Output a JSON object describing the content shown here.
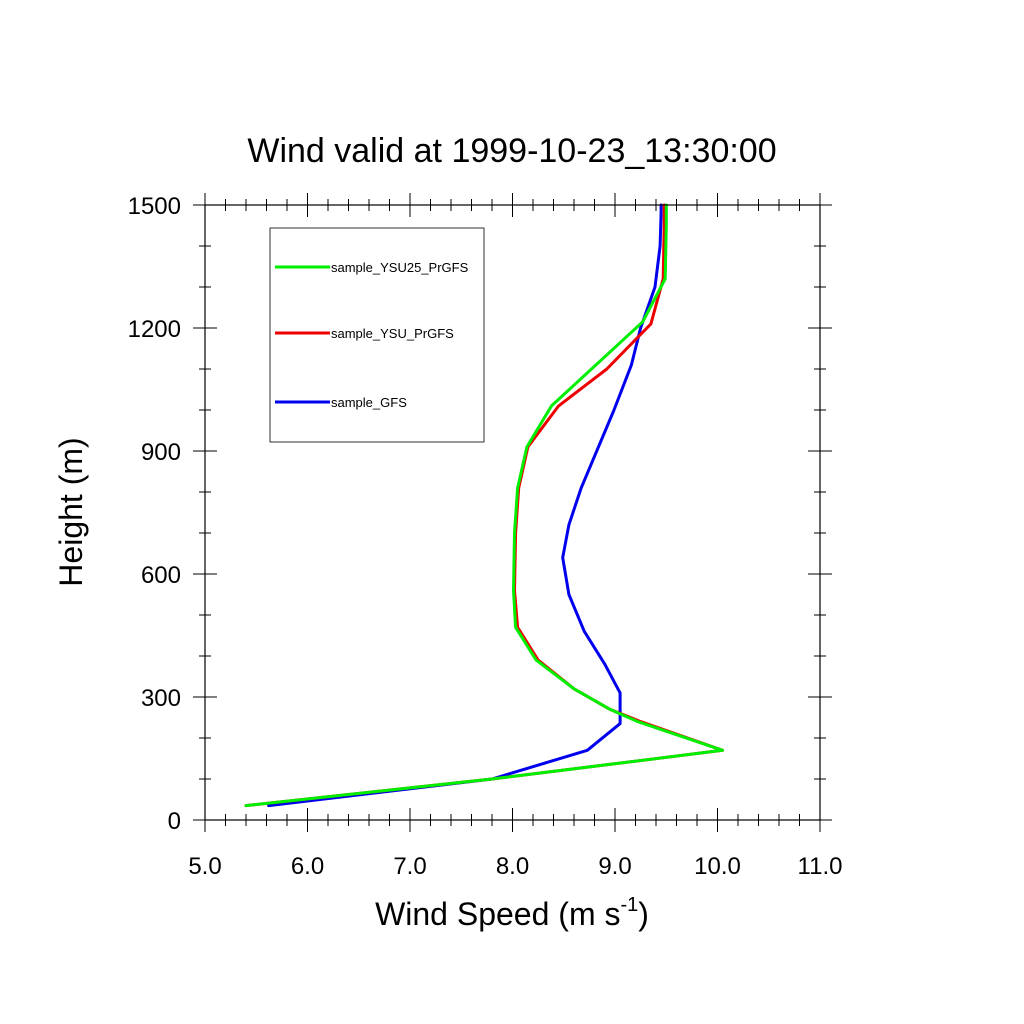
{
  "chart_data": {
    "type": "line",
    "title": "Wind valid at 1999-10-23_13:30:00",
    "xlabel": "Wind Speed (m s",
    "xlabel_sup": "-1",
    "xlabel_close": ")",
    "ylabel": "Height (m)",
    "xlim": [
      5.0,
      11.0
    ],
    "ylim": [
      0,
      1500
    ],
    "x_ticks": [
      "5.0",
      "6.0",
      "7.0",
      "8.0",
      "9.0",
      "10.0",
      "11.0"
    ],
    "y_ticks": [
      "0",
      "300",
      "600",
      "900",
      "1200",
      "1500"
    ],
    "legend_position": "top-left",
    "series": [
      {
        "name": "sample_YSU25_PrGFS",
        "color": "#00ee00",
        "x": [
          5.4,
          7.8,
          10.05,
          9.22,
          8.95,
          8.6,
          8.23,
          8.03,
          8.01,
          8.02,
          8.05,
          8.14,
          8.38,
          9.27,
          9.49,
          9.5,
          9.5
        ],
        "y": [
          35,
          100,
          170,
          240,
          270,
          320,
          390,
          470,
          560,
          700,
          810,
          910,
          1010,
          1215,
          1320,
          1450,
          1500
        ]
      },
      {
        "name": "sample_YSU_PrGFS",
        "color": "#ee0000",
        "x": [
          5.4,
          7.8,
          10.05,
          9.25,
          8.95,
          8.6,
          8.25,
          8.05,
          8.02,
          8.03,
          8.06,
          8.15,
          8.45,
          8.92,
          9.35,
          9.47,
          9.48,
          9.48
        ],
        "y": [
          35,
          100,
          170,
          240,
          270,
          320,
          390,
          470,
          560,
          700,
          810,
          910,
          1010,
          1100,
          1210,
          1320,
          1450,
          1500
        ]
      },
      {
        "name": "sample_GFS",
        "color": "#0000ee",
        "x": [
          5.62,
          7.8,
          8.73,
          9.05,
          9.05,
          8.9,
          8.7,
          8.55,
          8.49,
          8.55,
          8.67,
          8.99,
          9.16,
          9.25,
          9.39,
          9.44,
          9.45,
          9.45
        ],
        "y": [
          35,
          100,
          170,
          235,
          310,
          380,
          460,
          550,
          640,
          720,
          810,
          1000,
          1110,
          1200,
          1300,
          1400,
          1480,
          1500
        ]
      }
    ]
  }
}
